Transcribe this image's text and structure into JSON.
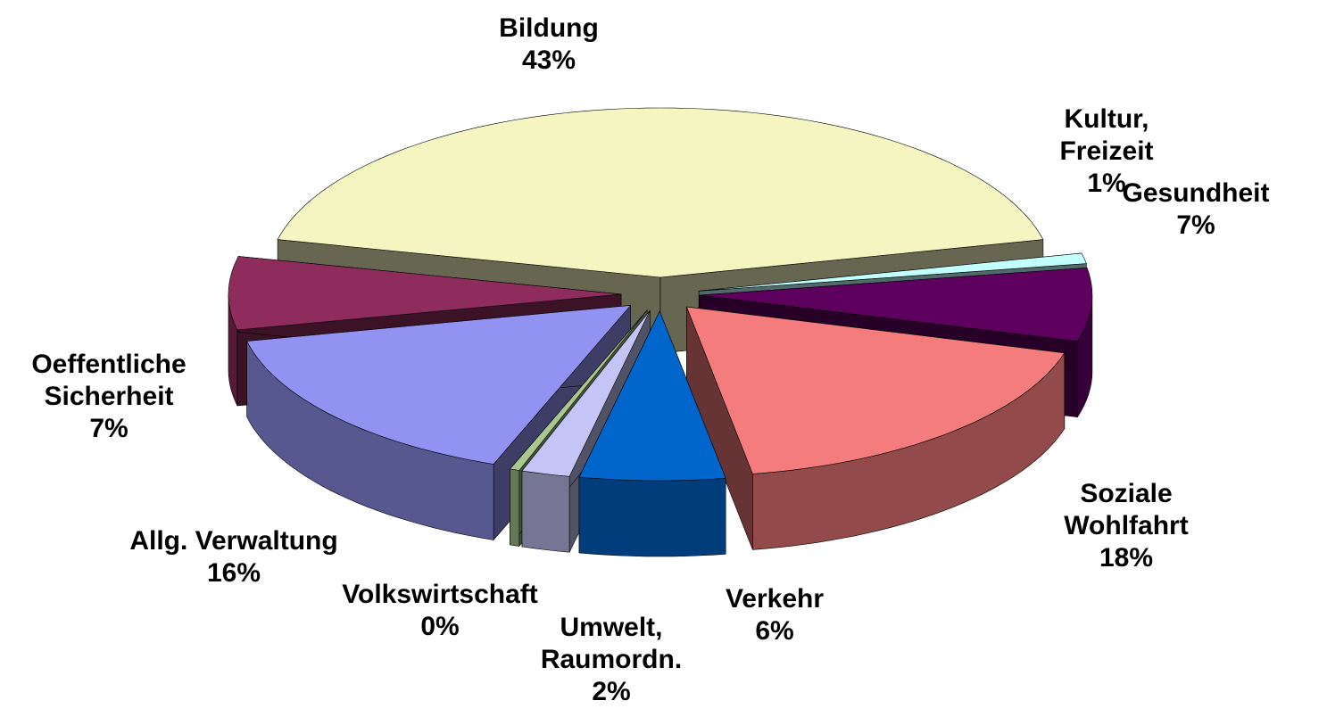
{
  "chart_data": {
    "type": "pie3d",
    "categories": [
      "Bildung",
      "Kultur,\nFreizeit",
      "Gesundheit",
      "Soziale\nWohlfahrt",
      "Verkehr",
      "Umwelt,\nRaumordn.",
      "Volkswirtschaft",
      "Allg. Verwaltung",
      "Oeffentliche\nSicherheit"
    ],
    "values": [
      43,
      1,
      7,
      18,
      6,
      2,
      0.4,
      16,
      7
    ],
    "value_labels": [
      "43%",
      "1%",
      "7%",
      "18%",
      "6%",
      "2%",
      "0%",
      "16%",
      "7%"
    ],
    "colors": [
      "#f5f5c2",
      "#c2ffff",
      "#5e005e",
      "#f47c7c",
      "#0066cc",
      "#c4c4f6",
      "#a8c890",
      "#9292f2",
      "#8e2c5e"
    ]
  }
}
